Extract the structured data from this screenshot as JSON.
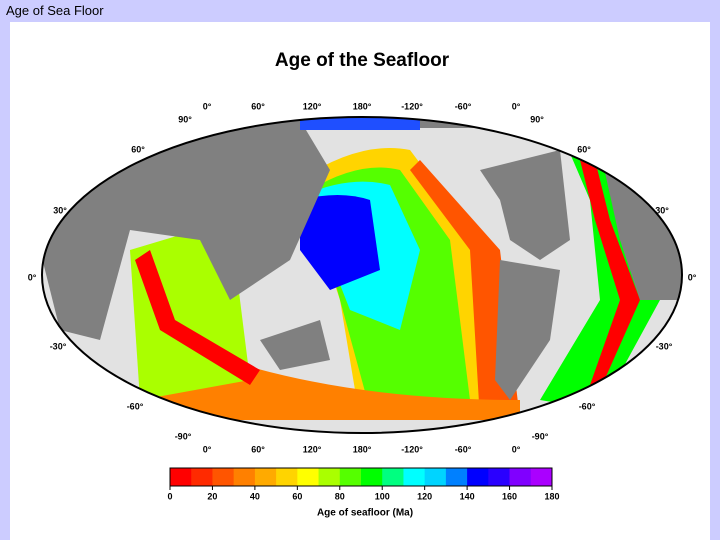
{
  "header": {
    "title": "Age of Sea Floor"
  },
  "figure": {
    "title": "Age of the Seafloor",
    "longitude_labels": [
      "0°",
      "60°",
      "120°",
      "180°",
      "-120°",
      "-60°",
      "0°"
    ],
    "latitude_labels": [
      "90°",
      "60°",
      "30°",
      "0°",
      "-30°",
      "-60°",
      "-90°"
    ],
    "colorbar": {
      "label": "Age of seafloor (Ma)",
      "ticks": [
        0,
        20,
        40,
        60,
        80,
        100,
        120,
        140,
        160,
        180
      ],
      "colors": [
        "#ff0000",
        "#ff2a00",
        "#ff5500",
        "#ff8000",
        "#ffaa00",
        "#ffd400",
        "#ffff00",
        "#aaff00",
        "#55ff00",
        "#00ff00",
        "#00ff80",
        "#00ffff",
        "#00d4ff",
        "#0080ff",
        "#0000ff",
        "#2a00ff",
        "#8000ff",
        "#aa00ff"
      ]
    }
  }
}
